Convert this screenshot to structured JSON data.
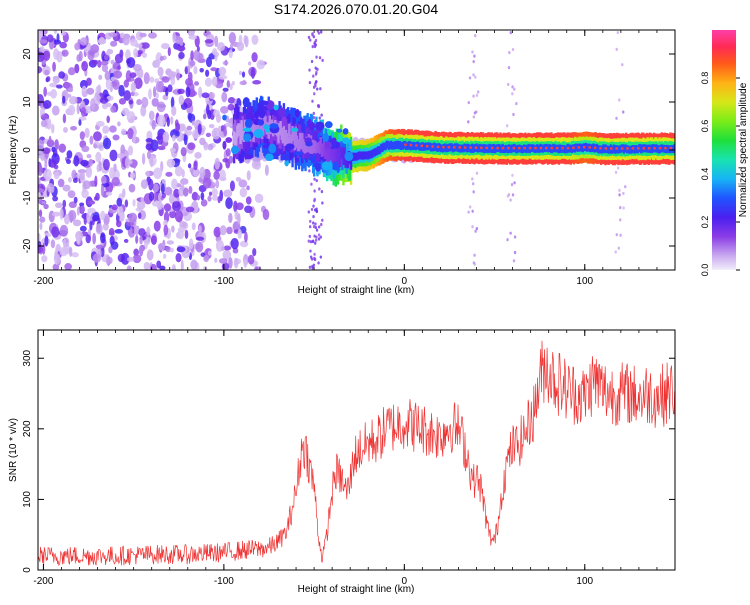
{
  "figure": {
    "title": "S174.2026.070.01.20.G04"
  },
  "chart_data": [
    {
      "type": "heatmap",
      "title": "S174.2026.070.01.20.G04",
      "xlabel": "Height of straight line (km)",
      "ylabel": "Frequency (Hz)",
      "xlim": [
        -203,
        150
      ],
      "ylim": [
        -25,
        25
      ],
      "xticks": [
        -200,
        -100,
        0,
        100
      ],
      "yticks": [
        -20,
        -10,
        0,
        10,
        20
      ],
      "xtick_labels": [
        "-200",
        "-100",
        "0",
        "100"
      ],
      "ytick_labels": [
        "-20",
        "-10",
        "0",
        "10",
        "20"
      ],
      "ridge": {
        "description_points_x": [
          -95,
          -80,
          -70,
          -60,
          -50,
          -40,
          -30,
          -20,
          -10,
          0,
          20,
          50,
          90,
          100,
          110,
          150
        ],
        "frequency_hz": [
          3,
          5,
          4,
          2,
          1,
          -1,
          -1.5,
          -1,
          1,
          1,
          0.5,
          0.3,
          0.3,
          0.5,
          0.2,
          0.3
        ],
        "amplitude": [
          0.2,
          0.3,
          0.25,
          0.3,
          0.35,
          0.5,
          0.7,
          0.75,
          0.85,
          0.9,
          0.9,
          0.9,
          0.9,
          0.85,
          0.9,
          0.9
        ]
      },
      "noise_region_x": [
        -203,
        -85
      ]
    },
    {
      "type": "colorbar",
      "label": "Normalized spectral amplitude",
      "range": [
        0,
        1
      ],
      "ticks": [
        0.0,
        0.2,
        0.4,
        0.6,
        0.8
      ],
      "tick_labels": [
        "0.0",
        "0.2",
        "0.4",
        "0.6",
        "0.8"
      ],
      "colors": [
        "#e8e0f8",
        "#b37fe6",
        "#7a2bdf",
        "#3b1ee8",
        "#1f5cff",
        "#18c7f0",
        "#1fe05a",
        "#8ef01a",
        "#e0e018",
        "#ff9b16",
        "#ff3b1e",
        "#ff2f7a",
        "#ff3fb0"
      ]
    },
    {
      "type": "line",
      "title": "",
      "xlabel": "Height of straight line (km)",
      "ylabel": "SNR (10 * v/v)",
      "xlim": [
        -203,
        150
      ],
      "ylim": [
        0,
        340
      ],
      "xticks": [
        -200,
        -100,
        0,
        100
      ],
      "yticks": [
        0,
        100,
        200,
        300
      ],
      "xtick_labels": [
        "-200",
        "-100",
        "0",
        "100"
      ],
      "ytick_labels": [
        "0",
        "100",
        "200",
        "300"
      ],
      "color": "#ee3333",
      "series": [
        {
          "name": "SNR",
          "x": [
            -203,
            -180,
            -160,
            -140,
            -120,
            -100,
            -90,
            -80,
            -75,
            -70,
            -65,
            -62,
            -60,
            -58,
            -56,
            -54,
            -52,
            -50,
            -48,
            -46,
            -44,
            -42,
            -40,
            -38,
            -35,
            -32,
            -30,
            -28,
            -25,
            -22,
            -20,
            -15,
            -10,
            -5,
            0,
            5,
            10,
            15,
            20,
            25,
            30,
            33,
            36,
            38,
            40,
            42,
            44,
            46,
            48,
            50,
            52,
            54,
            56,
            58,
            60,
            62,
            65,
            68,
            70,
            72,
            75,
            78,
            80,
            83,
            86,
            90,
            95,
            100,
            105,
            110,
            115,
            120,
            125,
            130,
            135,
            140,
            145,
            150
          ],
          "y": [
            20,
            20,
            20,
            22,
            22,
            25,
            28,
            30,
            32,
            40,
            55,
            90,
            110,
            150,
            180,
            165,
            140,
            120,
            60,
            20,
            30,
            70,
            110,
            140,
            130,
            110,
            125,
            160,
            170,
            175,
            180,
            185,
            200,
            205,
            210,
            205,
            200,
            195,
            190,
            205,
            200,
            180,
            150,
            125,
            130,
            120,
            95,
            60,
            45,
            40,
            70,
            110,
            140,
            160,
            175,
            175,
            185,
            200,
            215,
            225,
            270,
            290,
            285,
            270,
            265,
            255,
            250,
            245,
            270,
            255,
            250,
            250,
            250,
            245,
            250,
            245,
            250,
            255
          ]
        }
      ]
    }
  ]
}
